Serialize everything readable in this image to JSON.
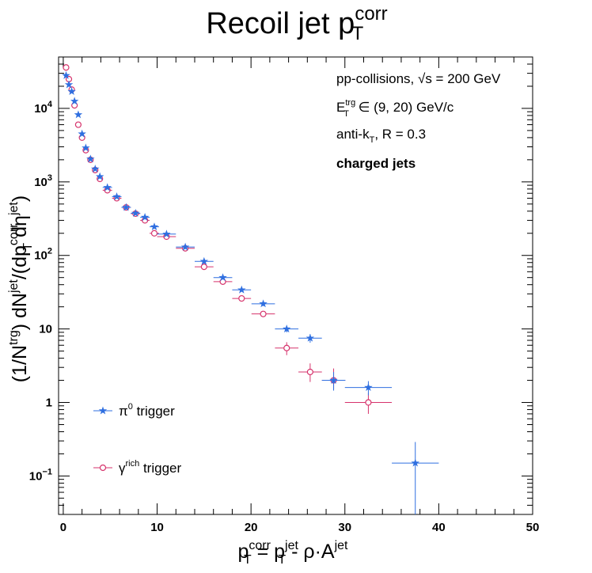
{
  "chart_data": {
    "type": "scatter",
    "title": {
      "main": "Recoil jet p",
      "sup": "corr",
      "sub": "T"
    },
    "xlabel": {
      "parts": [
        {
          "t": "p",
          "s": "base"
        },
        {
          "t": "corr",
          "s": "sup"
        },
        {
          "t": "T",
          "s": "sub"
        },
        {
          "t": " = p",
          "s": "base"
        },
        {
          "t": "jet",
          "s": "sup"
        },
        {
          "t": "T",
          "s": "sub"
        },
        {
          "t": " - ρ·A",
          "s": "base"
        },
        {
          "t": "jet",
          "s": "sup"
        }
      ]
    },
    "ylabel": {
      "parts": [
        {
          "t": "(1/N",
          "s": "base"
        },
        {
          "t": "trg",
          "s": "sup"
        },
        {
          "t": ") dN",
          "s": "base"
        },
        {
          "t": "jet",
          "s": "sup"
        },
        {
          "t": "/(dp",
          "s": "base"
        },
        {
          "t": "corr",
          "s": "sup"
        },
        {
          "t": "T",
          "s": "sub"
        },
        {
          "t": " dη",
          "s": "base"
        },
        {
          "t": "jet",
          "s": "sup"
        },
        {
          "t": ")",
          "s": "base"
        }
      ]
    },
    "xlim": [
      -0.5,
      50
    ],
    "ylim": [
      0.03,
      50000
    ],
    "ylog": true,
    "xticks": [
      "0",
      "10",
      "20",
      "30",
      "40",
      "50"
    ],
    "yticks": [
      {
        "v": 0.1,
        "base": "10",
        "exp": "−1"
      },
      {
        "v": 1,
        "base": "1",
        "exp": ""
      },
      {
        "v": 10,
        "base": "10",
        "exp": ""
      },
      {
        "v": 100,
        "base": "10",
        "exp": "2"
      },
      {
        "v": 1000,
        "base": "10",
        "exp": "3"
      },
      {
        "v": 10000,
        "base": "10",
        "exp": "4"
      }
    ],
    "annotations": [
      {
        "id": "ann-collisions",
        "text": "pp-collisions, √s = 200 GeV"
      },
      {
        "id": "ann-trigger",
        "text": "E",
        "sup": "trg",
        "sub": "T",
        "rest": " ∈ (9, 20) GeV/c"
      },
      {
        "id": "ann-algo",
        "text": "anti-k",
        "sub": "T",
        "rest": ", R = 0.3"
      },
      {
        "id": "ann-charged",
        "text": "charged jets",
        "bold": true
      }
    ],
    "legend_position": "bottom-left",
    "series": [
      {
        "name": "π",
        "name_sup": "0",
        "name_rest": " trigger",
        "color": "#2f6fe0",
        "marker": "star",
        "x": [
          0.3,
          0.6,
          0.9,
          1.2,
          1.6,
          2.0,
          2.4,
          2.9,
          3.4,
          3.9,
          4.7,
          5.7,
          6.7,
          7.7,
          8.7,
          9.7,
          11.0,
          13.0,
          15.0,
          17.0,
          19.0,
          21.3,
          23.8,
          26.3,
          28.8,
          32.5,
          37.5
        ],
        "xerr": [
          0.15,
          0.15,
          0.15,
          0.15,
          0.2,
          0.2,
          0.2,
          0.25,
          0.25,
          0.25,
          0.5,
          0.5,
          0.5,
          0.5,
          0.5,
          0.5,
          1.0,
          1.0,
          1.0,
          1.0,
          1.0,
          1.25,
          1.25,
          1.25,
          1.25,
          2.5,
          2.5
        ],
        "y": [
          28000,
          21000,
          17000,
          12500,
          8200,
          4500,
          2900,
          2050,
          1500,
          1180,
          840,
          630,
          450,
          375,
          330,
          245,
          195,
          130,
          83,
          50,
          34,
          22,
          10,
          7.5,
          2.0,
          1.6,
          0.15
        ],
        "ylo": [
          27500,
          20600,
          16700,
          12300,
          8100,
          4450,
          2870,
          2030,
          1485,
          1165,
          830,
          622,
          444,
          370,
          325,
          240,
          190,
          126,
          80,
          48,
          32.5,
          20.5,
          9.0,
          6.5,
          1.45,
          1.25,
          0.03
        ],
        "yhi": [
          28500,
          21400,
          17300,
          12700,
          8300,
          4550,
          2930,
          2070,
          1515,
          1195,
          850,
          638,
          456,
          380,
          335,
          250,
          200,
          134,
          86,
          52,
          35.5,
          23.5,
          11.0,
          8.5,
          2.6,
          1.95,
          0.29
        ]
      },
      {
        "name": "γ",
        "name_sup": "rich",
        "name_rest": " trigger",
        "color": "#d6336c",
        "marker": "circle",
        "x": [
          0.3,
          0.6,
          0.9,
          1.2,
          1.6,
          2.0,
          2.4,
          2.9,
          3.4,
          3.9,
          4.7,
          5.7,
          6.7,
          7.7,
          8.7,
          9.7,
          11.0,
          13.0,
          15.0,
          17.0,
          19.0,
          21.3,
          23.8,
          26.3,
          28.8,
          32.5
        ],
        "xerr": [
          0.15,
          0.15,
          0.15,
          0.15,
          0.2,
          0.2,
          0.2,
          0.25,
          0.25,
          0.25,
          0.5,
          0.5,
          0.5,
          0.5,
          0.5,
          0.5,
          1.0,
          1.0,
          1.0,
          1.0,
          1.0,
          1.25,
          1.25,
          1.25,
          1.25,
          2.5
        ],
        "y": [
          36000,
          25000,
          18000,
          11000,
          6000,
          4000,
          2700,
          2000,
          1450,
          1100,
          770,
          600,
          450,
          370,
          300,
          200,
          180,
          125,
          70,
          44,
          26,
          16,
          5.5,
          2.6,
          2.0,
          1.0
        ],
        "ylo": [
          35500,
          24700,
          17700,
          10800,
          5900,
          3950,
          2660,
          1970,
          1425,
          1080,
          755,
          585,
          440,
          360,
          290,
          194,
          174,
          120,
          66,
          41,
          24,
          14.5,
          4.4,
          1.9,
          1.5,
          0.7
        ],
        "yhi": [
          36500,
          25300,
          18300,
          11200,
          6100,
          4050,
          2740,
          2030,
          1475,
          1120,
          785,
          615,
          460,
          380,
          310,
          206,
          186,
          130,
          74,
          47,
          28,
          17.5,
          6.6,
          3.4,
          2.9,
          1.35
        ]
      }
    ]
  }
}
